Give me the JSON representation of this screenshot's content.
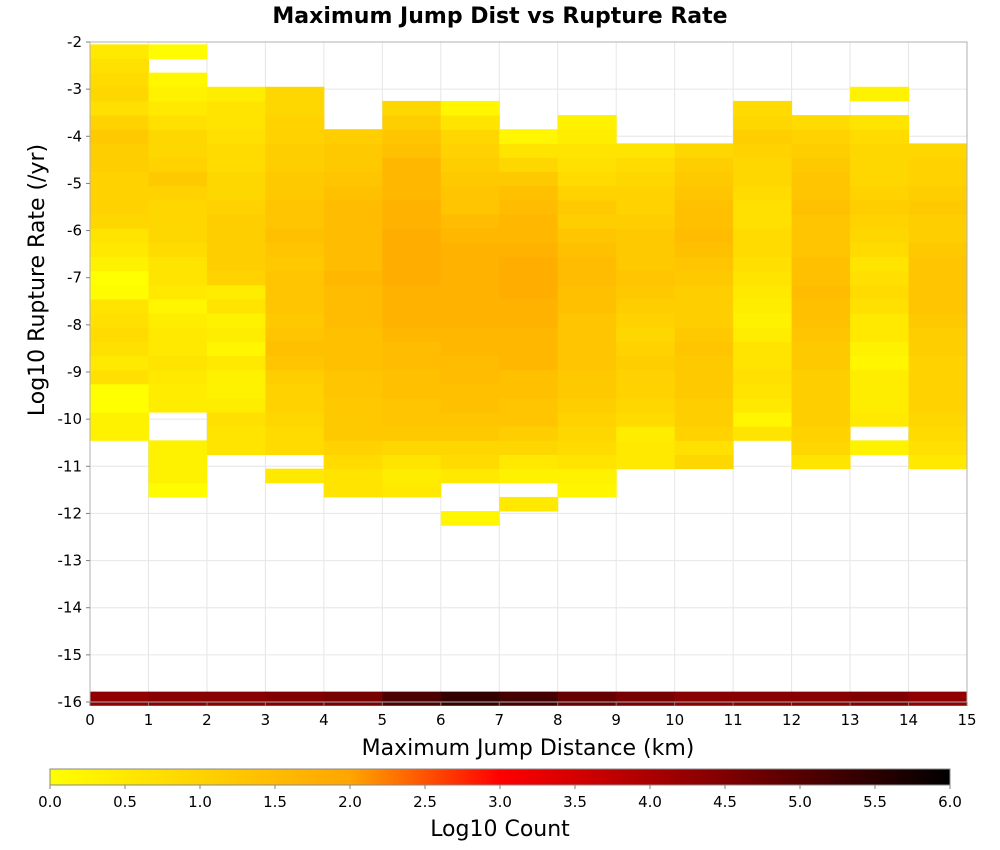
{
  "chart_data": {
    "type": "heatmap",
    "title": "Maximum Jump Dist vs Rupture Rate",
    "xlabel": "Maximum Jump Distance (km)",
    "ylabel": "Log10 Rupture Rate (/yr)",
    "xlim": [
      0,
      15
    ],
    "ylim": [
      -16,
      -2
    ],
    "x_ticks": [
      "0",
      "1",
      "2",
      "3",
      "4",
      "5",
      "6",
      "7",
      "8",
      "9",
      "10",
      "11",
      "12",
      "13",
      "14",
      "15"
    ],
    "y_ticks": [
      "-2",
      "-3",
      "-4",
      "-5",
      "-6",
      "-7",
      "-8",
      "-9",
      "-10",
      "-11",
      "-12",
      "-13",
      "-14",
      "-15",
      "-16"
    ],
    "x_bin_width": 1,
    "y_bin_width": 0.3,
    "grid": true,
    "colorbar": {
      "label": "Log10 Count",
      "range": [
        0,
        6
      ],
      "ticks": [
        "0.0",
        "0.5",
        "1.0",
        "1.5",
        "2.0",
        "2.5",
        "3.0",
        "3.5",
        "4.0",
        "4.5",
        "5.0",
        "5.5",
        "6.0"
      ],
      "colors": [
        "#ffff00",
        "#ffa500",
        "#ff0000",
        "#000000"
      ]
    },
    "columns": [
      {
        "x": 0.5,
        "y_start": -10.45,
        "values": [
          0.3,
          0.3,
          0.0,
          0.0,
          0.7,
          0.5,
          0.7,
          0.8,
          0.7,
          0.6,
          0.1,
          0.0,
          0.3,
          0.5,
          0.6,
          0.9,
          1.0,
          1.0,
          1.0,
          1.1,
          1.1,
          1.2,
          1.0,
          0.7,
          0.9,
          0.8,
          0.7,
          0.5
        ]
      },
      {
        "x": 1.5,
        "y_start": -11.65,
        "values": [
          0.1,
          0.3,
          0.3,
          0.3,
          null,
          null,
          0.4,
          0.4,
          0.5,
          0.6,
          0.5,
          0.5,
          0.4,
          0.2,
          0.5,
          0.6,
          0.6,
          0.8,
          0.9,
          0.9,
          0.9,
          1.0,
          1.2,
          1.0,
          0.9,
          0.9,
          0.7,
          0.5,
          0.3,
          0.2,
          null,
          0.1
        ]
      },
      {
        "x": 2.5,
        "y_start": -10.75,
        "values": [
          0.6,
          0.6,
          0.7,
          0.4,
          0.3,
          0.3,
          0.5,
          0.2,
          0.4,
          0.3,
          0.6,
          0.4,
          1.0,
          1.1,
          1.1,
          1.1,
          1.1,
          1.0,
          0.9,
          0.9,
          0.8,
          0.8,
          0.7,
          0.6,
          0.6,
          0.4
        ]
      },
      {
        "x": 3.5,
        "y_start": -11.35,
        "values": [
          0.5,
          null,
          0.8,
          0.8,
          0.9,
          1.0,
          1.0,
          1.1,
          1.3,
          1.4,
          1.3,
          1.2,
          1.3,
          1.3,
          1.3,
          1.2,
          1.3,
          1.4,
          1.3,
          1.3,
          1.2,
          1.2,
          1.1,
          1.1,
          1.0,
          1.0,
          0.9,
          0.9
        ]
      },
      {
        "x": 4.5,
        "y_start": -11.65,
        "values": [
          0.6,
          0.6,
          0.8,
          1.0,
          1.2,
          1.2,
          1.2,
          1.3,
          1.3,
          1.4,
          1.4,
          1.4,
          1.5,
          1.5,
          1.5,
          1.6,
          1.5,
          1.5,
          1.5,
          1.5,
          1.5,
          1.4,
          1.3,
          1.2,
          1.2,
          1.1
        ]
      },
      {
        "x": 5.5,
        "y_start": -11.65,
        "values": [
          0.5,
          0.4,
          0.6,
          0.9,
          1.2,
          1.3,
          1.3,
          1.4,
          1.4,
          1.5,
          1.5,
          1.6,
          1.7,
          1.7,
          1.7,
          1.8,
          1.8,
          1.8,
          1.8,
          1.7,
          1.7,
          1.6,
          1.6,
          1.6,
          1.4,
          1.3,
          1.1,
          0.9
        ]
      },
      {
        "x": 6.5,
        "y_start": -12.25,
        "values": [
          0.2,
          null,
          null,
          0.5,
          0.8,
          0.9,
          1.2,
          1.3,
          1.4,
          1.4,
          1.5,
          1.5,
          1.6,
          1.6,
          1.7,
          1.7,
          1.7,
          1.7,
          1.7,
          1.7,
          1.6,
          1.5,
          1.3,
          1.3,
          1.2,
          1.1,
          1.0,
          0.9,
          0.6,
          0.2
        ]
      },
      {
        "x": 7.5,
        "y_start": -11.95,
        "values": [
          0.5,
          null,
          0.3,
          0.5,
          0.9,
          1.1,
          1.3,
          1.3,
          1.4,
          1.4,
          1.6,
          1.6,
          1.6,
          1.7,
          1.7,
          1.8,
          1.8,
          1.8,
          1.7,
          1.6,
          1.6,
          1.5,
          1.4,
          1.2,
          0.9,
          0.6,
          0.2
        ]
      },
      {
        "x": 8.5,
        "y_start": -11.65,
        "values": [
          0.2,
          0.3,
          0.6,
          0.8,
          0.9,
          1.0,
          1.1,
          1.2,
          1.2,
          1.3,
          1.3,
          1.3,
          1.3,
          1.4,
          1.4,
          1.5,
          1.5,
          1.4,
          1.3,
          1.1,
          1.2,
          1.0,
          0.8,
          0.7,
          0.6,
          0.4,
          0.3
        ]
      },
      {
        "x": 9.5,
        "y_start": -11.05,
        "values": [
          0.5,
          0.5,
          0.4,
          0.8,
          0.9,
          1.0,
          1.0,
          1.1,
          1.0,
          0.9,
          1.0,
          1.1,
          1.2,
          1.3,
          1.2,
          1.2,
          1.2,
          1.1,
          1.0,
          1.0,
          0.9,
          0.8,
          0.6
        ]
      },
      {
        "x": 10.5,
        "y_start": -11.05,
        "values": [
          0.9,
          0.7,
          1.0,
          1.1,
          1.1,
          1.2,
          1.2,
          1.2,
          1.3,
          1.2,
          1.1,
          1.1,
          1.1,
          1.2,
          1.3,
          1.4,
          1.5,
          1.4,
          1.4,
          1.3,
          1.2,
          1.1,
          0.9
        ]
      },
      {
        "x": 11.5,
        "y_start": -10.45,
        "values": [
          0.6,
          0.2,
          0.5,
          0.6,
          0.7,
          0.6,
          0.6,
          0.4,
          0.3,
          0.4,
          0.5,
          0.6,
          0.7,
          0.8,
          0.8,
          0.7,
          0.7,
          0.8,
          0.9,
          0.9,
          1.0,
          1.1,
          0.9,
          0.8
        ]
      },
      {
        "x": 12.5,
        "y_start": -11.05,
        "values": [
          0.6,
          0.9,
          1.0,
          1.1,
          1.1,
          1.1,
          1.1,
          1.2,
          1.2,
          1.3,
          1.4,
          1.4,
          1.5,
          1.4,
          1.4,
          1.3,
          1.3,
          1.3,
          1.4,
          1.3,
          1.3,
          1.2,
          1.1,
          1.0,
          0.8
        ]
      },
      {
        "x": 13.5,
        "y_start": -10.75,
        "values": [
          0.3,
          null,
          0.5,
          0.4,
          0.4,
          0.4,
          0.2,
          0.3,
          0.5,
          0.5,
          0.7,
          0.8,
          0.7,
          0.6,
          0.8,
          0.9,
          1.0,
          1.1,
          1.0,
          0.9,
          0.9,
          0.9,
          0.8,
          0.6,
          null,
          0.3
        ]
      },
      {
        "x": 14.5,
        "y_start": -11.05,
        "values": [
          0.5,
          0.7,
          0.8,
          0.9,
          1.0,
          1.0,
          1.0,
          1.0,
          1.1,
          1.1,
          1.2,
          1.3,
          1.3,
          1.3,
          1.3,
          1.2,
          1.1,
          1.1,
          1.2,
          1.1,
          1.0,
          1.0,
          0.9
        ]
      }
    ],
    "bottom_band": {
      "y": -15.93,
      "values": [
        4.3,
        4.4,
        4.4,
        4.5,
        4.6,
        5.1,
        5.4,
        5.2,
        4.8,
        4.6,
        4.4,
        4.4,
        4.4,
        4.5,
        4.3
      ]
    }
  }
}
